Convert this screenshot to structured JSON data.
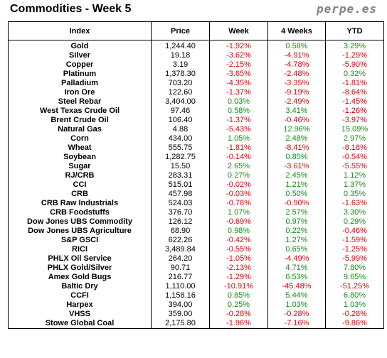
{
  "header": {
    "title": "Commodities - Week 5",
    "brand": "perpe.es"
  },
  "columns": [
    "Index",
    "Price",
    "Week",
    "4 Weeks",
    "YTD"
  ],
  "rows": [
    {
      "index": "Gold",
      "price": "1,244.40",
      "week": "-1.92%",
      "four_weeks": "0.58%",
      "ytd": "3.29%"
    },
    {
      "index": "Silver",
      "price": "19.18",
      "week": "-3.62%",
      "four_weeks": "-4.91%",
      "ytd": "-1.29%"
    },
    {
      "index": "Copper",
      "price": "3.19",
      "week": "-2.15%",
      "four_weeks": "-4.78%",
      "ytd": "-5.90%"
    },
    {
      "index": "Platinum",
      "price": "1,378.30",
      "week": "-3.65%",
      "four_weeks": "-2.48%",
      "ytd": "0.32%"
    },
    {
      "index": "Palladium",
      "price": "703.20",
      "week": "-4.35%",
      "four_weeks": "-3.35%",
      "ytd": "-1.81%"
    },
    {
      "index": "Iron Ore",
      "price": "122.60",
      "week": "-1.37%",
      "four_weeks": "-9.19%",
      "ytd": "-8.64%"
    },
    {
      "index": "Steel Rebar",
      "price": "3,404.00",
      "week": "0.03%",
      "four_weeks": "-2.49%",
      "ytd": "-1.45%"
    },
    {
      "index": "West Texas Crude Oil",
      "price": "97.46",
      "week": "0.58%",
      "four_weeks": "3.41%",
      "ytd": "-1.26%"
    },
    {
      "index": "Brent Crude Oil",
      "price": "106.40",
      "week": "-1.37%",
      "four_weeks": "-0.46%",
      "ytd": "-3.97%"
    },
    {
      "index": "Natural Gas",
      "price": "4.88",
      "week": "-5.43%",
      "four_weeks": "12.96%",
      "ytd": "15.09%"
    },
    {
      "index": "Corn",
      "price": "434.00",
      "week": "1.05%",
      "four_weeks": "2.48%",
      "ytd": "2.97%"
    },
    {
      "index": "Wheat",
      "price": "555.75",
      "week": "-1.81%",
      "four_weeks": "-8.41%",
      "ytd": "-8.18%"
    },
    {
      "index": "Soybean",
      "price": "1,282.75",
      "week": "-0.14%",
      "four_weeks": "0.85%",
      "ytd": "-0.54%"
    },
    {
      "index": "Sugar",
      "price": "15.50",
      "week": "2.65%",
      "four_weeks": "-3.61%",
      "ytd": "-5.55%"
    },
    {
      "index": "RJ/CRB",
      "price": "283.31",
      "week": "0.27%",
      "four_weeks": "2.45%",
      "ytd": "1.12%"
    },
    {
      "index": "CCI",
      "price": "515.01",
      "week": "-0.02%",
      "four_weeks": "1.21%",
      "ytd": "1.37%"
    },
    {
      "index": "CRB",
      "price": "457.98",
      "week": "-0.03%",
      "four_weeks": "0.50%",
      "ytd": "0.35%"
    },
    {
      "index": "CRB Raw Industrials",
      "price": "524.03",
      "week": "-0.78%",
      "four_weeks": "-0.90%",
      "ytd": "-1.63%"
    },
    {
      "index": "CRB Foodstuffs",
      "price": "376.70",
      "week": "1.07%",
      "four_weeks": "2.57%",
      "ytd": "3.30%"
    },
    {
      "index": "Dow Jones UBS Commodity",
      "price": "126.12",
      "week": "-0.69%",
      "four_weeks": "0.97%",
      "ytd": "0.29%"
    },
    {
      "index": "Dow Jones UBS Agriculture",
      "price": "68.90",
      "week": "0.98%",
      "four_weeks": "0.22%",
      "ytd": "-0.46%"
    },
    {
      "index": "S&P GSCI",
      "price": "622.26",
      "week": "-0.42%",
      "four_weeks": "1.27%",
      "ytd": "-1.59%"
    },
    {
      "index": "RICI",
      "price": "3,489.84",
      "week": "-0.55%",
      "four_weeks": "0.65%",
      "ytd": "-1.25%"
    },
    {
      "index": "PHLX Oil Service",
      "price": "264.20",
      "week": "-1.05%",
      "four_weeks": "-4.49%",
      "ytd": "-5.99%"
    },
    {
      "index": "PHLX Gold/Silver",
      "price": "90.71",
      "week": "-2.13%",
      "four_weeks": "4.71%",
      "ytd": "7.80%"
    },
    {
      "index": "Amex Gold Bugs",
      "price": "216.77",
      "week": "-1.29%",
      "four_weeks": "6.53%",
      "ytd": "9.65%"
    },
    {
      "index": "Baltic Dry",
      "price": "1,110.00",
      "week": "-10.91%",
      "four_weeks": "-45.48%",
      "ytd": "-51.25%"
    },
    {
      "index": "CCFI",
      "price": "1,158.16",
      "week": "0.85%",
      "four_weeks": "5.44%",
      "ytd": "6.80%"
    },
    {
      "index": "Harpex",
      "price": "394.00",
      "week": "0.25%",
      "four_weeks": "1.03%",
      "ytd": "1.03%"
    },
    {
      "index": "VHSS",
      "price": "359.00",
      "week": "-0.28%",
      "four_weeks": "-0.28%",
      "ytd": "-0.28%"
    },
    {
      "index": "Stowe Global Coal",
      "price": "2,175.80",
      "week": "-1.96%",
      "four_weeks": "-7.16%",
      "ytd": "-9.86%"
    }
  ],
  "colors": {
    "negative": "#e8000b",
    "positive": "#1a8a1a"
  }
}
